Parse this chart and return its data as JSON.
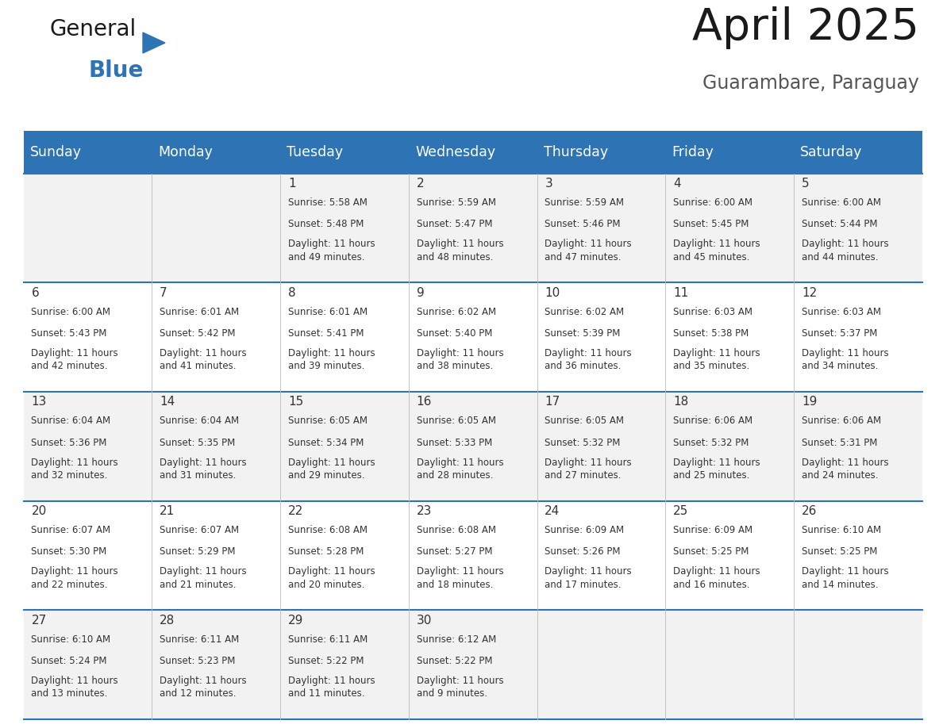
{
  "title": "April 2025",
  "subtitle": "Guarambare, Paraguay",
  "header_bg": "#2E74B5",
  "header_text": "#FFFFFF",
  "row_bg_light": "#F2F2F2",
  "row_bg_white": "#FFFFFF",
  "day_headers": [
    "Sunday",
    "Monday",
    "Tuesday",
    "Wednesday",
    "Thursday",
    "Friday",
    "Saturday"
  ],
  "calendar": [
    [
      {
        "day": "",
        "sunrise": "",
        "sunset": "",
        "daylight": ""
      },
      {
        "day": "",
        "sunrise": "",
        "sunset": "",
        "daylight": ""
      },
      {
        "day": "1",
        "sunrise": "Sunrise: 5:58 AM",
        "sunset": "Sunset: 5:48 PM",
        "daylight": "Daylight: 11 hours\nand 49 minutes."
      },
      {
        "day": "2",
        "sunrise": "Sunrise: 5:59 AM",
        "sunset": "Sunset: 5:47 PM",
        "daylight": "Daylight: 11 hours\nand 48 minutes."
      },
      {
        "day": "3",
        "sunrise": "Sunrise: 5:59 AM",
        "sunset": "Sunset: 5:46 PM",
        "daylight": "Daylight: 11 hours\nand 47 minutes."
      },
      {
        "day": "4",
        "sunrise": "Sunrise: 6:00 AM",
        "sunset": "Sunset: 5:45 PM",
        "daylight": "Daylight: 11 hours\nand 45 minutes."
      },
      {
        "day": "5",
        "sunrise": "Sunrise: 6:00 AM",
        "sunset": "Sunset: 5:44 PM",
        "daylight": "Daylight: 11 hours\nand 44 minutes."
      }
    ],
    [
      {
        "day": "6",
        "sunrise": "Sunrise: 6:00 AM",
        "sunset": "Sunset: 5:43 PM",
        "daylight": "Daylight: 11 hours\nand 42 minutes."
      },
      {
        "day": "7",
        "sunrise": "Sunrise: 6:01 AM",
        "sunset": "Sunset: 5:42 PM",
        "daylight": "Daylight: 11 hours\nand 41 minutes."
      },
      {
        "day": "8",
        "sunrise": "Sunrise: 6:01 AM",
        "sunset": "Sunset: 5:41 PM",
        "daylight": "Daylight: 11 hours\nand 39 minutes."
      },
      {
        "day": "9",
        "sunrise": "Sunrise: 6:02 AM",
        "sunset": "Sunset: 5:40 PM",
        "daylight": "Daylight: 11 hours\nand 38 minutes."
      },
      {
        "day": "10",
        "sunrise": "Sunrise: 6:02 AM",
        "sunset": "Sunset: 5:39 PM",
        "daylight": "Daylight: 11 hours\nand 36 minutes."
      },
      {
        "day": "11",
        "sunrise": "Sunrise: 6:03 AM",
        "sunset": "Sunset: 5:38 PM",
        "daylight": "Daylight: 11 hours\nand 35 minutes."
      },
      {
        "day": "12",
        "sunrise": "Sunrise: 6:03 AM",
        "sunset": "Sunset: 5:37 PM",
        "daylight": "Daylight: 11 hours\nand 34 minutes."
      }
    ],
    [
      {
        "day": "13",
        "sunrise": "Sunrise: 6:04 AM",
        "sunset": "Sunset: 5:36 PM",
        "daylight": "Daylight: 11 hours\nand 32 minutes."
      },
      {
        "day": "14",
        "sunrise": "Sunrise: 6:04 AM",
        "sunset": "Sunset: 5:35 PM",
        "daylight": "Daylight: 11 hours\nand 31 minutes."
      },
      {
        "day": "15",
        "sunrise": "Sunrise: 6:05 AM",
        "sunset": "Sunset: 5:34 PM",
        "daylight": "Daylight: 11 hours\nand 29 minutes."
      },
      {
        "day": "16",
        "sunrise": "Sunrise: 6:05 AM",
        "sunset": "Sunset: 5:33 PM",
        "daylight": "Daylight: 11 hours\nand 28 minutes."
      },
      {
        "day": "17",
        "sunrise": "Sunrise: 6:05 AM",
        "sunset": "Sunset: 5:32 PM",
        "daylight": "Daylight: 11 hours\nand 27 minutes."
      },
      {
        "day": "18",
        "sunrise": "Sunrise: 6:06 AM",
        "sunset": "Sunset: 5:32 PM",
        "daylight": "Daylight: 11 hours\nand 25 minutes."
      },
      {
        "day": "19",
        "sunrise": "Sunrise: 6:06 AM",
        "sunset": "Sunset: 5:31 PM",
        "daylight": "Daylight: 11 hours\nand 24 minutes."
      }
    ],
    [
      {
        "day": "20",
        "sunrise": "Sunrise: 6:07 AM",
        "sunset": "Sunset: 5:30 PM",
        "daylight": "Daylight: 11 hours\nand 22 minutes."
      },
      {
        "day": "21",
        "sunrise": "Sunrise: 6:07 AM",
        "sunset": "Sunset: 5:29 PM",
        "daylight": "Daylight: 11 hours\nand 21 minutes."
      },
      {
        "day": "22",
        "sunrise": "Sunrise: 6:08 AM",
        "sunset": "Sunset: 5:28 PM",
        "daylight": "Daylight: 11 hours\nand 20 minutes."
      },
      {
        "day": "23",
        "sunrise": "Sunrise: 6:08 AM",
        "sunset": "Sunset: 5:27 PM",
        "daylight": "Daylight: 11 hours\nand 18 minutes."
      },
      {
        "day": "24",
        "sunrise": "Sunrise: 6:09 AM",
        "sunset": "Sunset: 5:26 PM",
        "daylight": "Daylight: 11 hours\nand 17 minutes."
      },
      {
        "day": "25",
        "sunrise": "Sunrise: 6:09 AM",
        "sunset": "Sunset: 5:25 PM",
        "daylight": "Daylight: 11 hours\nand 16 minutes."
      },
      {
        "day": "26",
        "sunrise": "Sunrise: 6:10 AM",
        "sunset": "Sunset: 5:25 PM",
        "daylight": "Daylight: 11 hours\nand 14 minutes."
      }
    ],
    [
      {
        "day": "27",
        "sunrise": "Sunrise: 6:10 AM",
        "sunset": "Sunset: 5:24 PM",
        "daylight": "Daylight: 11 hours\nand 13 minutes."
      },
      {
        "day": "28",
        "sunrise": "Sunrise: 6:11 AM",
        "sunset": "Sunset: 5:23 PM",
        "daylight": "Daylight: 11 hours\nand 12 minutes."
      },
      {
        "day": "29",
        "sunrise": "Sunrise: 6:11 AM",
        "sunset": "Sunset: 5:22 PM",
        "daylight": "Daylight: 11 hours\nand 11 minutes."
      },
      {
        "day": "30",
        "sunrise": "Sunrise: 6:12 AM",
        "sunset": "Sunset: 5:22 PM",
        "daylight": "Daylight: 11 hours\nand 9 minutes."
      },
      {
        "day": "",
        "sunrise": "",
        "sunset": "",
        "daylight": ""
      },
      {
        "day": "",
        "sunrise": "",
        "sunset": "",
        "daylight": ""
      },
      {
        "day": "",
        "sunrise": "",
        "sunset": "",
        "daylight": ""
      }
    ]
  ],
  "divider_color": "#2E74B5",
  "text_color": "#333333",
  "cell_text_size": 8.5,
  "day_num_size": 11,
  "header_text_size": 12.5
}
